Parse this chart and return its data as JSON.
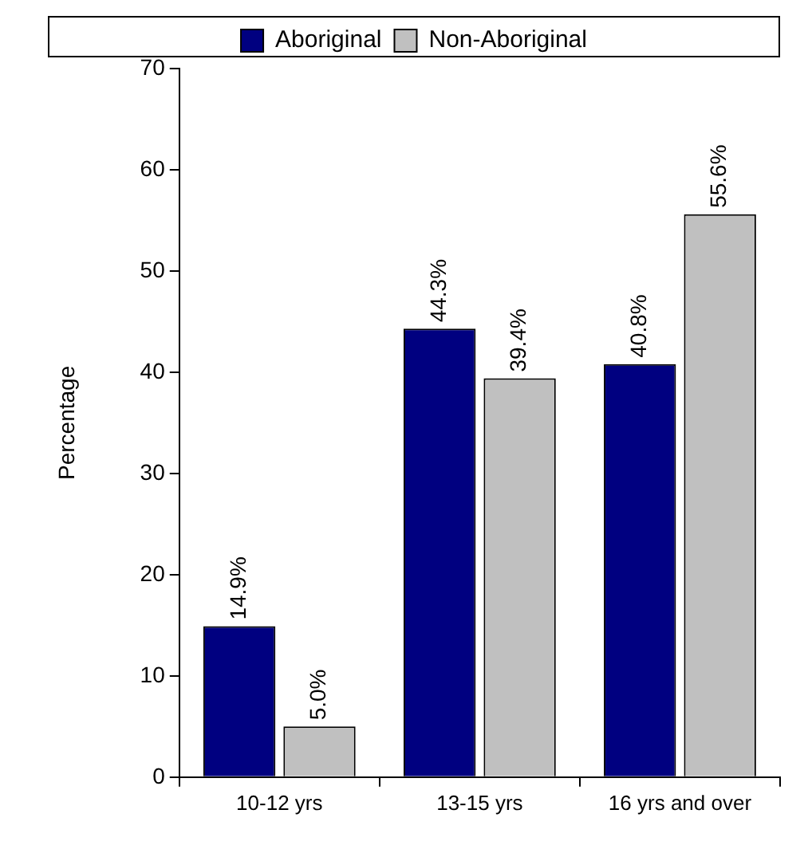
{
  "chart_data": {
    "type": "bar",
    "ylabel": "Percentage",
    "categories": [
      "10-12 yrs",
      "13-15 yrs",
      "16 yrs and over"
    ],
    "series": [
      {
        "name": "Aboriginal",
        "color": "#000080",
        "values": [
          14.9,
          44.3,
          40.8
        ],
        "value_labels": [
          "14.9%",
          "44.3%",
          "40.8%"
        ]
      },
      {
        "name": "Non-Aboriginal",
        "color": "#c0c0c0",
        "values": [
          5.0,
          39.4,
          55.6
        ],
        "value_labels": [
          "5.0%",
          "39.4%",
          "55.6%"
        ]
      }
    ],
    "ylim": [
      0,
      70
    ],
    "yticks": [
      0,
      10,
      20,
      30,
      40,
      50,
      60,
      70
    ],
    "grid": false,
    "legend": "top"
  }
}
